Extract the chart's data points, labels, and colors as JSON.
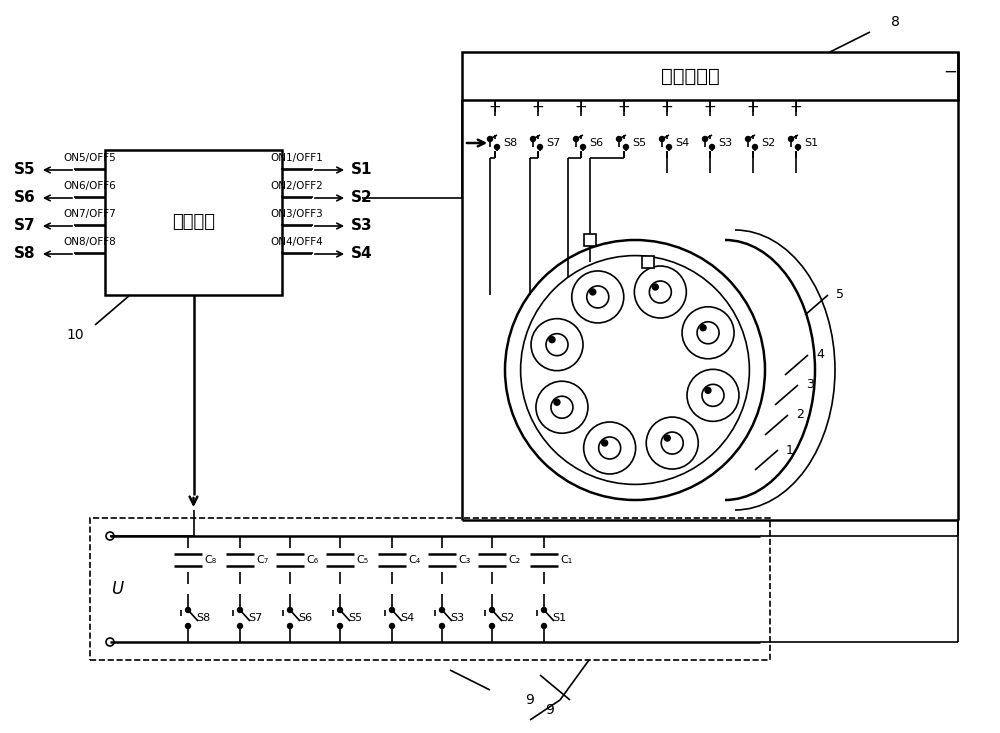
{
  "bg_color": "#ffffff",
  "line_color": "#000000",
  "ctrl_label": "控制模块",
  "ign_label": "点火子电路",
  "left_sigs": [
    "S5",
    "S6",
    "S7",
    "S8"
  ],
  "left_labels": [
    "ON5/OFF5",
    "ON6/OFF6",
    "ON7/OFF7",
    "ON8/OFF8"
  ],
  "right_sigs": [
    "S1",
    "S2",
    "S3",
    "S4"
  ],
  "right_labels": [
    "ON1/OFF1",
    "ON2/OFF2",
    "ON3/OFF3",
    "ON4/OFF4"
  ],
  "sw_top_labels": [
    "S8",
    "S7",
    "S6",
    "S5",
    "S4",
    "S3",
    "S2",
    "S1"
  ],
  "cap_labels": [
    "C₁",
    "C₂",
    "C₃",
    "C₄",
    "C₅",
    "C₆",
    "C₇",
    "C₈"
  ],
  "sw_bot_labels": [
    "S1",
    "S2",
    "S3",
    "S4",
    "S5",
    "S6",
    "S7",
    "S8"
  ],
  "part_labels": [
    "1",
    "2",
    "3",
    "4",
    "5"
  ],
  "label_8": "8",
  "label_9": "9",
  "label_10": "10"
}
